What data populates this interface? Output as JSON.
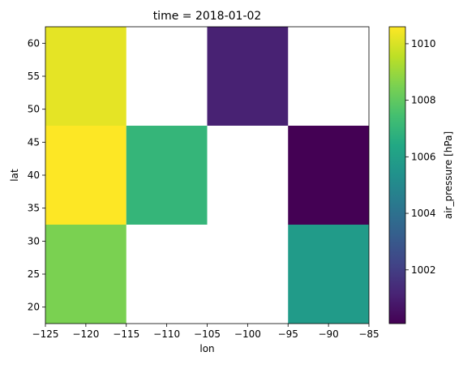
{
  "chart_data": {
    "type": "heatmap",
    "title": "time = 2018-01-02",
    "xlabel": "lon",
    "ylabel": "lat",
    "xlim": [
      -125,
      -85
    ],
    "ylim": [
      17.5,
      62.5
    ],
    "x_ticks": [
      -125,
      -120,
      -115,
      -110,
      -105,
      -100,
      -95,
      -90,
      -85
    ],
    "x_tick_labels": [
      "−125",
      "−120",
      "−115",
      "−110",
      "−105",
      "−100",
      "−95",
      "−90",
      "−85"
    ],
    "y_ticks": [
      20,
      25,
      30,
      35,
      40,
      45,
      50,
      55,
      60
    ],
    "y_tick_labels": [
      "20",
      "25",
      "30",
      "35",
      "40",
      "45",
      "50",
      "55",
      "60"
    ],
    "colormap": "viridis",
    "colorbar": {
      "label": "air_pressure [hPa]",
      "vmin": 1000.1,
      "vmax": 1010.6,
      "ticks": [
        1002,
        1004,
        1006,
        1008,
        1010
      ],
      "tick_labels": [
        "1002",
        "1004",
        "1006",
        "1008",
        "1010"
      ]
    },
    "cells": [
      {
        "lon": [
          -125,
          -115
        ],
        "lat": [
          47.5,
          62.5
        ],
        "value": 1010.2
      },
      {
        "lon": [
          -125,
          -115
        ],
        "lat": [
          32.5,
          47.5
        ],
        "value": 1010.6
      },
      {
        "lon": [
          -125,
          -115
        ],
        "lat": [
          17.5,
          32.5
        ],
        "value": 1008.5
      },
      {
        "lon": [
          -115,
          -105
        ],
        "lat": [
          32.5,
          47.5
        ],
        "value": 1007.0
      },
      {
        "lon": [
          -105,
          -95
        ],
        "lat": [
          47.5,
          62.5
        ],
        "value": 1001.1
      },
      {
        "lon": [
          -95,
          -85
        ],
        "lat": [
          32.5,
          47.5
        ],
        "value": 1000.1
      },
      {
        "lon": [
          -95,
          -85
        ],
        "lat": [
          17.5,
          32.5
        ],
        "value": 1005.8
      }
    ],
    "grid": false
  }
}
